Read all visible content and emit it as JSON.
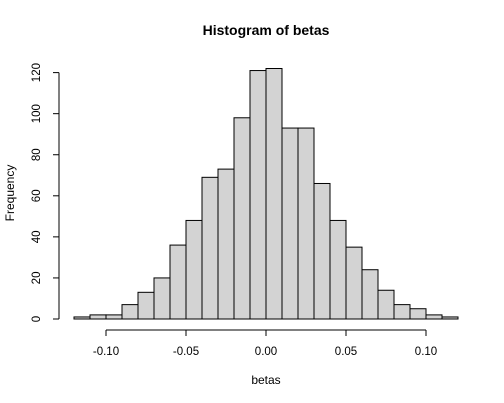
{
  "chart_data": {
    "type": "bar",
    "title": "Histogram of betas",
    "xlabel": "betas",
    "ylabel": "Frequency",
    "bin_width": 0.01,
    "bins": [
      {
        "start": -0.12,
        "end": -0.11,
        "count": 1
      },
      {
        "start": -0.11,
        "end": -0.1,
        "count": 2
      },
      {
        "start": -0.1,
        "end": -0.09,
        "count": 2
      },
      {
        "start": -0.09,
        "end": -0.08,
        "count": 7
      },
      {
        "start": -0.08,
        "end": -0.07,
        "count": 13
      },
      {
        "start": -0.07,
        "end": -0.06,
        "count": 20
      },
      {
        "start": -0.06,
        "end": -0.05,
        "count": 36
      },
      {
        "start": -0.05,
        "end": -0.04,
        "count": 48
      },
      {
        "start": -0.04,
        "end": -0.03,
        "count": 69
      },
      {
        "start": -0.03,
        "end": -0.02,
        "count": 73
      },
      {
        "start": -0.02,
        "end": -0.01,
        "count": 98
      },
      {
        "start": -0.01,
        "end": 0.0,
        "count": 121
      },
      {
        "start": 0.0,
        "end": 0.01,
        "count": 122
      },
      {
        "start": 0.01,
        "end": 0.02,
        "count": 93
      },
      {
        "start": 0.02,
        "end": 0.03,
        "count": 93
      },
      {
        "start": 0.03,
        "end": 0.04,
        "count": 66
      },
      {
        "start": 0.04,
        "end": 0.05,
        "count": 48
      },
      {
        "start": 0.05,
        "end": 0.06,
        "count": 35
      },
      {
        "start": 0.06,
        "end": 0.07,
        "count": 24
      },
      {
        "start": 0.07,
        "end": 0.08,
        "count": 14
      },
      {
        "start": 0.08,
        "end": 0.09,
        "count": 7
      },
      {
        "start": 0.09,
        "end": 0.1,
        "count": 5
      },
      {
        "start": 0.1,
        "end": 0.11,
        "count": 2
      },
      {
        "start": 0.11,
        "end": 0.12,
        "count": 1
      }
    ],
    "xlim": [
      -0.12,
      0.12
    ],
    "ylim": [
      0,
      122
    ],
    "x_ticks": [
      -0.1,
      -0.05,
      0.0,
      0.05,
      0.1
    ],
    "x_tick_labels": [
      "-0.10",
      "-0.05",
      "0.00",
      "0.05",
      "0.10"
    ],
    "y_ticks": [
      0,
      20,
      40,
      60,
      80,
      100,
      120
    ],
    "y_tick_labels": [
      "0",
      "20",
      "40",
      "60",
      "80",
      "100",
      "120"
    ],
    "grid": false,
    "bar_color": "#d3d3d3",
    "edge_color": "#000000"
  }
}
